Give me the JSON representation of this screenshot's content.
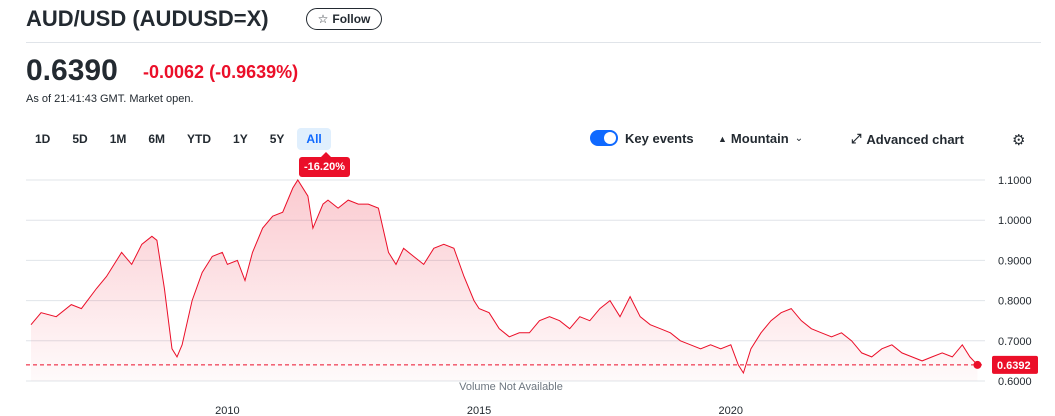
{
  "header": {
    "title": "AUD/USD (AUDUSD=X)",
    "follow_label": "Follow",
    "follow_icon": "star-icon"
  },
  "quote": {
    "price": "0.6390",
    "change": "-0.0062",
    "change_pct": "(-0.9639%)",
    "as_of": "As of 21:41:43 GMT. Market open.",
    "negative_color": "#eb0f29"
  },
  "ranges": [
    "1D",
    "5D",
    "1M",
    "6M",
    "YTD",
    "1Y",
    "5Y",
    "All"
  ],
  "active_range": "All",
  "toolbar": {
    "key_events_label": "Key events",
    "key_events_on": true,
    "chart_type_label": "Mountain",
    "advanced_label": "Advanced chart",
    "settings_icon": "gear-icon"
  },
  "performance_badge": "-16.20%",
  "chart_data": {
    "type": "area",
    "title": "",
    "xlabel": "",
    "ylabel": "",
    "x_tick_labels": [
      "2010",
      "2015",
      "2020"
    ],
    "y_tick_labels": [
      "1.1000",
      "1.0000",
      "0.9000",
      "0.8000",
      "0.7000",
      "0.6000"
    ],
    "ylim": [
      0.6,
      1.1
    ],
    "grid": true,
    "reference_line": 0.64,
    "last_value_label": "0.6392",
    "footer_note": "Volume Not Available",
    "line_color": "#eb0f29",
    "series": [
      {
        "x": [
          2006.1,
          2006.3,
          2006.6,
          2006.9,
          2007.1,
          2007.4,
          2007.6,
          2007.9,
          2008.1,
          2008.3,
          2008.5,
          2008.6,
          2008.75,
          2008.9,
          2009.0,
          2009.1,
          2009.3,
          2009.5,
          2009.7,
          2009.9,
          2010.0,
          2010.2,
          2010.35,
          2010.5,
          2010.7,
          2010.9,
          2011.1,
          2011.3,
          2011.4,
          2011.6,
          2011.7,
          2011.9,
          2012.0,
          2012.2,
          2012.4,
          2012.6,
          2012.8,
          2013.0,
          2013.2,
          2013.35,
          2013.5,
          2013.7,
          2013.9,
          2014.1,
          2014.3,
          2014.5,
          2014.7,
          2014.9,
          2015.0,
          2015.2,
          2015.4,
          2015.6,
          2015.8,
          2016.0,
          2016.2,
          2016.4,
          2016.6,
          2016.8,
          2017.0,
          2017.2,
          2017.4,
          2017.6,
          2017.8,
          2018.0,
          2018.2,
          2018.4,
          2018.6,
          2018.8,
          2019.0,
          2019.2,
          2019.4,
          2019.6,
          2019.8,
          2020.0,
          2020.15,
          2020.25,
          2020.4,
          2020.6,
          2020.8,
          2021.0,
          2021.2,
          2021.4,
          2021.6,
          2021.8,
          2022.0,
          2022.2,
          2022.4,
          2022.6,
          2022.8,
          2023.0,
          2023.2,
          2023.4,
          2023.6,
          2023.8,
          2024.0,
          2024.2,
          2024.4,
          2024.6,
          2024.75,
          2024.9
        ],
        "y": [
          0.74,
          0.77,
          0.76,
          0.79,
          0.78,
          0.83,
          0.86,
          0.92,
          0.89,
          0.94,
          0.96,
          0.95,
          0.83,
          0.68,
          0.66,
          0.69,
          0.8,
          0.87,
          0.91,
          0.92,
          0.89,
          0.9,
          0.85,
          0.92,
          0.98,
          1.01,
          1.02,
          1.08,
          1.1,
          1.06,
          0.98,
          1.04,
          1.05,
          1.03,
          1.05,
          1.04,
          1.04,
          1.03,
          0.92,
          0.89,
          0.93,
          0.91,
          0.89,
          0.93,
          0.94,
          0.93,
          0.86,
          0.8,
          0.78,
          0.77,
          0.73,
          0.71,
          0.72,
          0.72,
          0.75,
          0.76,
          0.75,
          0.73,
          0.76,
          0.75,
          0.78,
          0.8,
          0.76,
          0.81,
          0.76,
          0.74,
          0.73,
          0.72,
          0.7,
          0.69,
          0.68,
          0.69,
          0.68,
          0.69,
          0.64,
          0.62,
          0.68,
          0.72,
          0.75,
          0.77,
          0.78,
          0.75,
          0.73,
          0.72,
          0.71,
          0.72,
          0.7,
          0.67,
          0.66,
          0.68,
          0.69,
          0.67,
          0.66,
          0.65,
          0.66,
          0.67,
          0.66,
          0.69,
          0.66,
          0.64
        ]
      }
    ]
  }
}
